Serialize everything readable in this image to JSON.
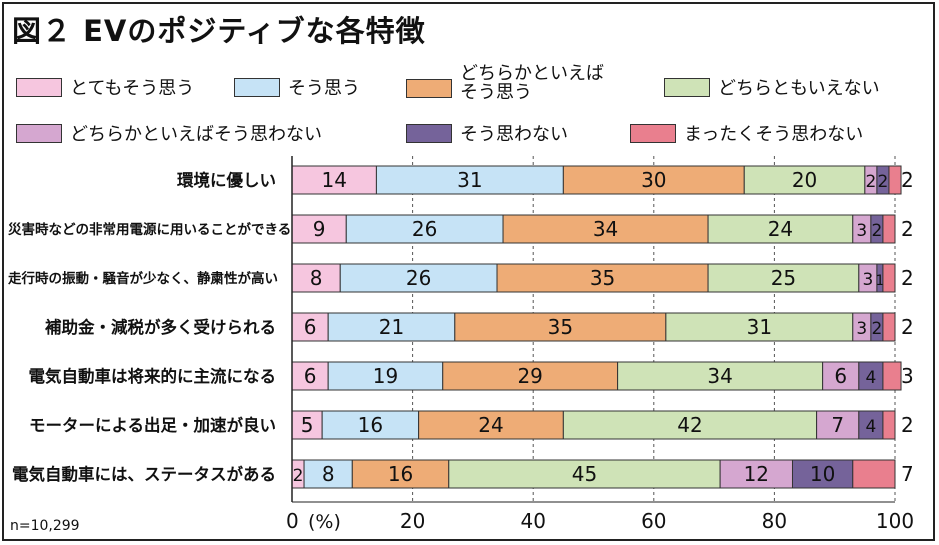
{
  "title": "図２ EVのポジティブな各特徴",
  "note": "n=10,299",
  "colors": {
    "s1": "#f6c6df",
    "s2": "#c6e3f6",
    "s3": "#eeac76",
    "s4": "#cfe3b7",
    "s5": "#d5a7d0",
    "s6": "#75639a",
    "s7": "#e97f8e"
  },
  "legend": [
    {
      "key": "s1",
      "label": "とてもそう思う"
    },
    {
      "key": "s2",
      "label": "そう思う"
    },
    {
      "key": "s3",
      "label": "どちらかといえば そう思う",
      "line1": "どちらかといえば",
      "line2": "そう思う"
    },
    {
      "key": "s4",
      "label": "どちらともいえない"
    },
    {
      "key": "s5",
      "label": "どちらかといえばそう思わない"
    },
    {
      "key": "s6",
      "label": "そう思わない"
    },
    {
      "key": "s7",
      "label": "まったくそう思わない"
    }
  ],
  "chart_data": {
    "type": "bar",
    "orientation": "horizontal-stacked-100",
    "title": "図２ EVのポジティブな各特徴",
    "xlabel": "(%)",
    "xlim": [
      0,
      100
    ],
    "xticks": [
      0,
      20,
      40,
      60,
      80,
      100
    ],
    "xtick_labels": [
      "0",
      "20",
      "40",
      "60",
      "80",
      "100"
    ],
    "categories": [
      "環境に優しい",
      "災害時などの非常用電源に用いることができる",
      "走行時の振動・騒音が少なく、静粛性が高い",
      "補助金・減税が多く受けられる",
      "電気自動車は将来的に主流になる",
      "モーターによる出足・加速が良い",
      "電気自動車には、ステータスがある"
    ],
    "series": [
      {
        "name": "とてもそう思う",
        "values": [
          14,
          9,
          8,
          6,
          6,
          5,
          2
        ]
      },
      {
        "name": "そう思う",
        "values": [
          31,
          26,
          26,
          21,
          19,
          16,
          8
        ]
      },
      {
        "name": "どちらかといえばそう思う",
        "values": [
          30,
          34,
          35,
          35,
          29,
          24,
          16
        ]
      },
      {
        "name": "どちらともいえない",
        "values": [
          20,
          24,
          25,
          31,
          34,
          42,
          45
        ]
      },
      {
        "name": "どちらかといえばそう思わない",
        "values": [
          2,
          3,
          3,
          3,
          6,
          7,
          12
        ]
      },
      {
        "name": "そう思わない",
        "values": [
          2,
          2,
          1,
          2,
          4,
          4,
          10
        ]
      },
      {
        "name": "まったくそう思わない",
        "values": [
          2,
          2,
          2,
          2,
          3,
          2,
          7
        ]
      }
    ],
    "label_threshold": 1,
    "note": "n=10,299"
  }
}
